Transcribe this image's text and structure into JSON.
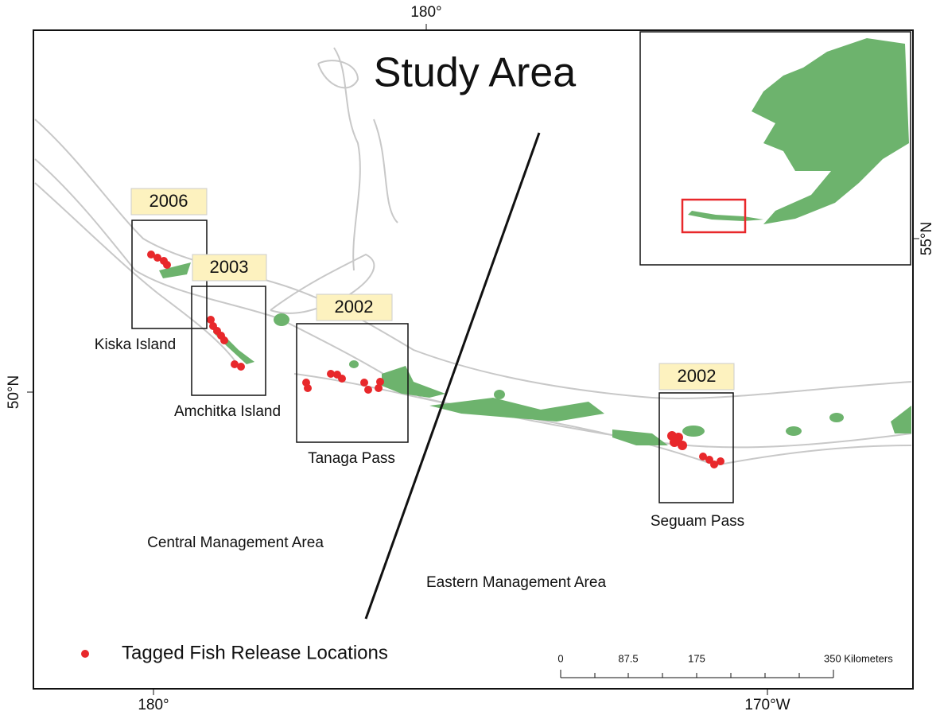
{
  "title": "Study Area",
  "graticule": {
    "top": [
      "180°"
    ],
    "bottom": [
      "180°",
      "170°W"
    ],
    "left": [
      "50°N"
    ],
    "right": [
      "55°N"
    ]
  },
  "study_boxes": [
    {
      "year": "2006",
      "label": "Kiska Island"
    },
    {
      "year": "2003",
      "label": "Amchitka Island"
    },
    {
      "year": "2002",
      "label": "Tanaga Pass"
    },
    {
      "year": "2002",
      "label": "Seguam Pass"
    }
  ],
  "management_areas": [
    "Central Management Area",
    "Eastern Management Area"
  ],
  "legend": {
    "label": "Tagged Fish Release Locations"
  },
  "scale_bar": {
    "labels": [
      "0",
      "87.5",
      "175",
      "350 Kilometers"
    ]
  }
}
